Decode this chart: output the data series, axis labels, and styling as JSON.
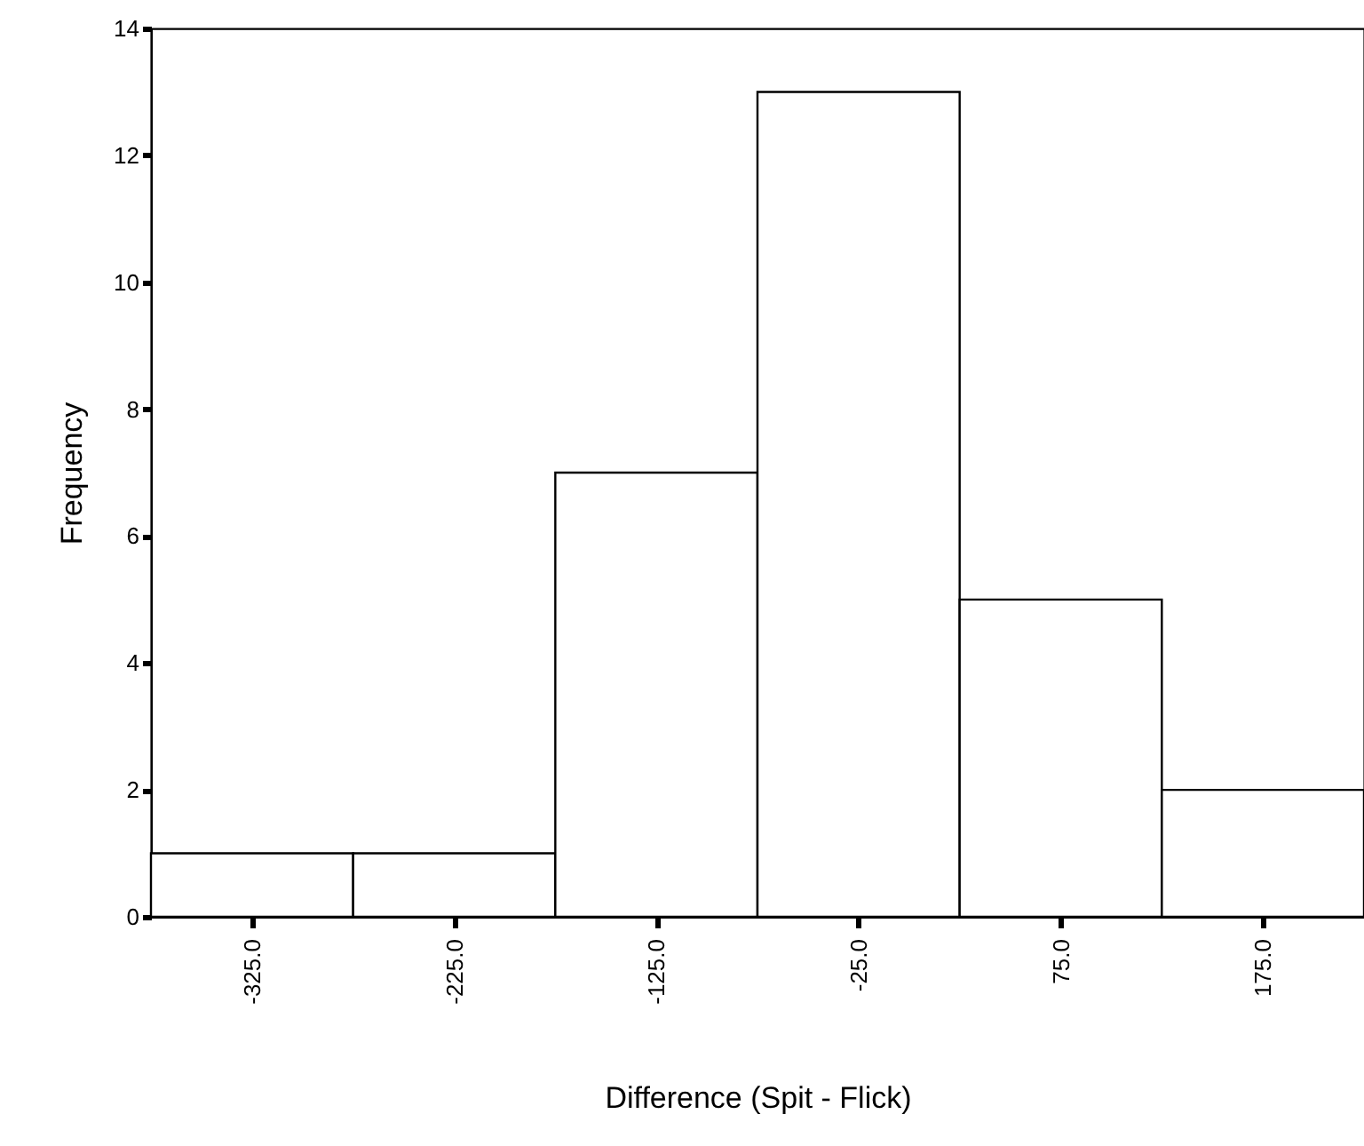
{
  "chart_data": {
    "type": "histogram",
    "xlabel": "Difference (Spit - Flick)",
    "ylabel": "Frequency",
    "bins": [
      -375,
      -275,
      -175,
      -75,
      25,
      125,
      225
    ],
    "values": [
      1,
      1,
      7,
      13,
      5,
      2
    ],
    "color": "#ffffff",
    "xlim": [
      -375,
      225
    ],
    "xticks": [
      {
        "value": -325,
        "label": "-325.0"
      },
      {
        "value": -225,
        "label": "-225.0"
      },
      {
        "value": -125,
        "label": "-125.0"
      },
      {
        "value": -25,
        "label": "-25.0"
      },
      {
        "value": 75,
        "label": "75.0"
      },
      {
        "value": 175,
        "label": "175.0"
      }
    ],
    "ylim": [
      0,
      14
    ],
    "yticks": [
      0,
      2,
      4,
      6,
      8,
      10,
      12,
      14
    ],
    "grid": false
  }
}
